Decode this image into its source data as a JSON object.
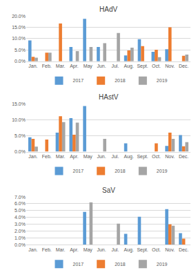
{
  "chart_data": [
    {
      "type": "bar",
      "title": "HAdV",
      "categories": [
        "Jan.",
        "Feb.",
        "Mar.",
        "Apr.",
        "May",
        "Jun.",
        "Jul.",
        "Aug.",
        "Sept.",
        "Oct.",
        "Nov.",
        "Dec."
      ],
      "series": [
        {
          "name": "2017",
          "color": "#5B9BD5",
          "values": [
            9.2,
            0,
            0,
            6.3,
            18.8,
            6.3,
            0,
            2.6,
            9.8,
            4.2,
            5.3,
            0
          ]
        },
        {
          "name": "2018",
          "color": "#ED7D31",
          "values": [
            2.0,
            3.8,
            16.7,
            0,
            0,
            0,
            0,
            4.8,
            6.7,
            5.1,
            15.0,
            2.4
          ]
        },
        {
          "name": "2019",
          "color": "#A5A5A5",
          "values": [
            1.6,
            3.8,
            0,
            4.5,
            6.3,
            8.0,
            12.5,
            6.0,
            0,
            1.8,
            0,
            3.0
          ]
        }
      ],
      "ylim": [
        0,
        20
      ],
      "yticks": [
        {
          "value": 0,
          "label": "0.0%"
        },
        {
          "value": 5,
          "label": "5.0%"
        },
        {
          "value": 10,
          "label": "10.0%"
        },
        {
          "value": 15,
          "label": "15.0%"
        },
        {
          "value": 20,
          "label": "20.0%"
        }
      ],
      "grid": true,
      "legend": "bottom"
    },
    {
      "type": "bar",
      "title": "HAstV",
      "categories": [
        "Jan.",
        "Feb.",
        "Mar.",
        "Apr.",
        "May",
        "Jun.",
        "Jul.",
        "Aug.",
        "Sept.",
        "Oct.",
        "Nov.",
        "Dec."
      ],
      "series": [
        {
          "name": "2017",
          "color": "#5B9BD5",
          "values": [
            4.5,
            0,
            6.0,
            10.5,
            14.3,
            0,
            0,
            2.6,
            0,
            0,
            1.8,
            5.2
          ]
        },
        {
          "name": "2018",
          "color": "#ED7D31",
          "values": [
            4.0,
            3.8,
            11.1,
            5.3,
            0,
            0,
            0,
            0,
            0,
            2.6,
            6.0,
            1.7
          ]
        },
        {
          "name": "2019",
          "color": "#A5A5A5",
          "values": [
            1.6,
            0,
            9.3,
            9.1,
            0,
            4.0,
            0,
            0,
            0,
            0,
            4.0,
            3.0
          ]
        }
      ],
      "ylim": [
        0,
        15
      ],
      "yticks": [
        {
          "value": 0,
          "label": "0.0%"
        },
        {
          "value": 5,
          "label": "5.0%"
        },
        {
          "value": 10,
          "label": "10.0%"
        },
        {
          "value": 15,
          "label": "15.0%"
        }
      ],
      "grid": true,
      "legend": "bottom"
    },
    {
      "type": "bar",
      "title": "SaV",
      "categories": [
        "Jan.",
        "Feb.",
        "Mar.",
        "Apr.",
        "May",
        "Jun.",
        "Jul.",
        "Aug.",
        "Sept.",
        "Oct.",
        "Nov.",
        "Dec."
      ],
      "series": [
        {
          "name": "2017",
          "color": "#5B9BD5",
          "values": [
            0,
            0,
            0,
            0,
            4.8,
            0,
            0,
            1.6,
            4.1,
            0,
            5.2,
            1.7
          ]
        },
        {
          "name": "2018",
          "color": "#ED7D31",
          "values": [
            0,
            0,
            0,
            0,
            0,
            0,
            0,
            0,
            0,
            0,
            3.0,
            0.9
          ]
        },
        {
          "name": "2019",
          "color": "#A5A5A5",
          "values": [
            0,
            0,
            0,
            0,
            6.2,
            0,
            3.1,
            0,
            0,
            0,
            2.8,
            0
          ]
        }
      ],
      "ylim": [
        0,
        7
      ],
      "yticks": [
        {
          "value": 0,
          "label": "0.0%"
        },
        {
          "value": 1,
          "label": "1.0%"
        },
        {
          "value": 2,
          "label": "2.0%"
        },
        {
          "value": 3,
          "label": "3.0%"
        },
        {
          "value": 4,
          "label": "4.0%"
        },
        {
          "value": 5,
          "label": "5.0%"
        },
        {
          "value": 6,
          "label": "6.0%"
        },
        {
          "value": 7,
          "label": "7.0%"
        }
      ],
      "grid": true,
      "legend": "bottom"
    }
  ]
}
